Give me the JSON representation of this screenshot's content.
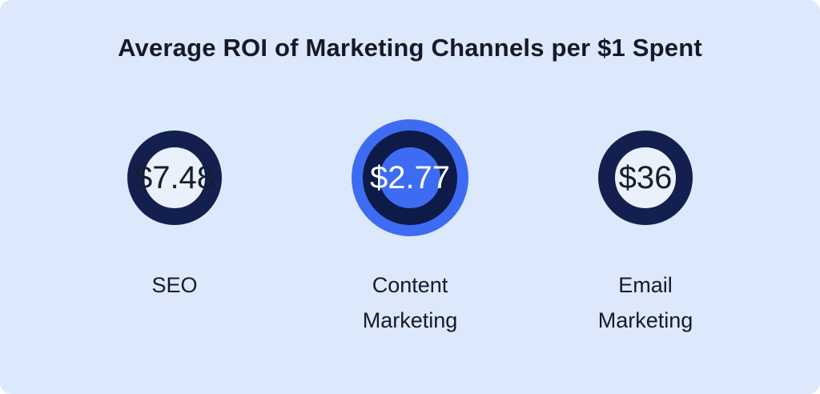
{
  "title": "Average ROI of Marketing Channels per $1 Spent",
  "channels": [
    {
      "value": "$7.48",
      "label_lines": [
        "SEO"
      ],
      "highlighted": false
    },
    {
      "value": "$2.77",
      "label_lines": [
        "Content",
        "Marketing"
      ],
      "highlighted": true
    },
    {
      "value": "$36",
      "label_lines": [
        "Email",
        "Marketing"
      ],
      "highlighted": false
    }
  ],
  "colors": {
    "background": "#dce8fc",
    "ring_navy": "#13204f",
    "accent_blue": "#3d6cf2",
    "circle_fill_light": "#eaf0fc",
    "text_dark": "#161a26",
    "value_on_accent": "#ffffff"
  },
  "chart_data": {
    "type": "bar",
    "subtype": "kpi-circle-badges",
    "title": "Average ROI of Marketing Channels per $1 Spent",
    "categories": [
      "SEO",
      "Content Marketing",
      "Email Marketing"
    ],
    "values": [
      7.48,
      2.77,
      36
    ],
    "value_labels": [
      "$7.48",
      "$2.77",
      "$36"
    ],
    "value_prefix": "$",
    "highlight_index": 1,
    "legend": false,
    "grid": false,
    "xlabel": "",
    "ylabel": ""
  }
}
